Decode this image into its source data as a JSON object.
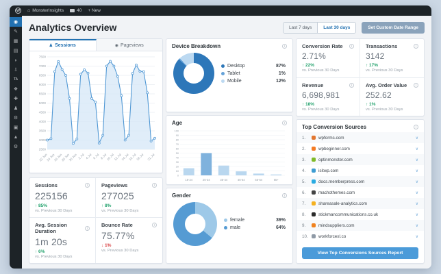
{
  "admin_bar": {
    "wp_badge": "W",
    "site_name": "MonsterInsights",
    "comments_count": "40",
    "new_label": "+ New"
  },
  "page": {
    "title": "Analytics Overview"
  },
  "date_controls": {
    "last7": "Last 7 days",
    "last30": "Last 30 days",
    "custom": "Set Custom Date Range"
  },
  "tabs": {
    "sessions": "Sessions",
    "pageviews": "Pageviews"
  },
  "sidebar": {
    "items": [
      {
        "name": "dashboard",
        "icon": "dashboard-icon",
        "glyph": "◉",
        "active": true
      },
      {
        "name": "posts",
        "icon": "pin-icon",
        "glyph": "✎",
        "active": false
      },
      {
        "name": "media",
        "icon": "media-icon",
        "glyph": "▦",
        "active": false
      },
      {
        "name": "pages",
        "icon": "pages-icon",
        "glyph": "▤",
        "active": false
      },
      {
        "name": "comments",
        "icon": "comment-bubble-icon",
        "glyph": "◗",
        "active": false
      },
      {
        "name": "downloads",
        "icon": "download-icon",
        "glyph": "⇩",
        "active": false
      },
      {
        "name": "ta-plugin",
        "icon": "ta-text-icon",
        "glyph": "TA",
        "active": false
      },
      {
        "name": "appearance",
        "icon": "brush-icon",
        "glyph": "❖",
        "active": false
      },
      {
        "name": "plugins",
        "icon": "plugin-icon",
        "glyph": "✚",
        "active": false
      },
      {
        "name": "users",
        "icon": "user-icon",
        "glyph": "♟",
        "active": false
      },
      {
        "name": "tools",
        "icon": "wrench-icon",
        "glyph": "⚙",
        "active": false
      },
      {
        "name": "page-builder",
        "icon": "box-icon",
        "glyph": "▣",
        "active": false
      },
      {
        "name": "analytics",
        "icon": "chart-icon",
        "glyph": "▲",
        "active": false
      },
      {
        "name": "settings",
        "icon": "gear-icon",
        "glyph": "⚙",
        "active": false
      }
    ]
  },
  "stats": {
    "sessions": {
      "label": "Sessions",
      "value": "225156",
      "change": "↑ 85%",
      "note": "vs. Previous 30 Days",
      "dir": "up"
    },
    "pageviews": {
      "label": "Pageviews",
      "value": "277025",
      "change": "↑ 8%",
      "note": "vs. Previous 30 Days",
      "dir": "up"
    },
    "avg_session_duration": {
      "label": "Avg. Session Duration",
      "value": "1m 20s",
      "change": "↑ 6%",
      "note": "vs. Previous 30 Days",
      "dir": "up"
    },
    "bounce_rate": {
      "label": "Bounce Rate",
      "value": "75.77%",
      "change": "↓ 1%",
      "note": "vs. Previous 30 Days",
      "dir": "down"
    },
    "conversion_rate": {
      "label": "Conversion Rate",
      "value": "2.71%",
      "change": "↑ 22%",
      "note": "vs. Previous 30 Days",
      "dir": "up"
    },
    "transactions": {
      "label": "Transactions",
      "value": "3142",
      "change": "↑ 17%",
      "note": "vs. Previous 30 Days",
      "dir": "up"
    },
    "revenue": {
      "label": "Revenue",
      "value": "6,698,981",
      "change": "↑ 18%",
      "note": "vs. Previous 30 Days",
      "dir": "up"
    },
    "avg_order_value": {
      "label": "Avg. Order Value",
      "value": "252.62",
      "change": "↑ 1%",
      "note": "vs. Previous 30 Days",
      "dir": "up"
    }
  },
  "top_sources": {
    "title": "Top Conversion Sources",
    "button_label": "View Top Conversions Sources Report",
    "items": [
      {
        "rank": "1.",
        "domain": "wpforms.com",
        "color": "#e27730"
      },
      {
        "rank": "2.",
        "domain": "wpbeginner.com",
        "color": "#f47b23"
      },
      {
        "rank": "3.",
        "domain": "optinmonster.com",
        "color": "#7fba28"
      },
      {
        "rank": "4.",
        "domain": "isitwp.com",
        "color": "#3d9cd2"
      },
      {
        "rank": "5.",
        "domain": "docs.memberpress.com",
        "color": "#29abe2"
      },
      {
        "rank": "6.",
        "domain": "machothemes.com",
        "color": "#444444"
      },
      {
        "rank": "7.",
        "domain": "shareasale-analytics.com",
        "color": "#f5b120"
      },
      {
        "rank": "8.",
        "domain": "stickmancommunications.co.uk",
        "color": "#2b2b2b"
      },
      {
        "rank": "9.",
        "domain": "mindsuppliers.com",
        "color": "#f0821e"
      },
      {
        "rank": "10.",
        "domain": "workforcexl.co",
        "color": "#8f9aa6"
      }
    ]
  },
  "chart_data": [
    {
      "type": "line",
      "name": "sessions-over-time",
      "x": [
        "22 Jun",
        "23 Jun",
        "24 Jun",
        "25 Jun",
        "26 Jun",
        "27 Jun",
        "28 Jun",
        "29 Jun",
        "30 Jun",
        "1 Jul",
        "2 Jul",
        "3 Jul",
        "4 Jul",
        "5 Jul",
        "6 Jul",
        "7 Jul",
        "8 Jul",
        "9 Jul",
        "10 Jul",
        "11 Jul",
        "12 Jul",
        "13 Jul",
        "14 Jul",
        "15 Jul",
        "16 Jul",
        "17 Jul",
        "18 Jul",
        "19 Jul",
        "20 Jul",
        "21 Jul"
      ],
      "values": [
        3000,
        3080,
        6700,
        7250,
        6820,
        6500,
        5250,
        2820,
        3060,
        6560,
        6800,
        6620,
        5250,
        5050,
        2840,
        3260,
        7000,
        7260,
        7000,
        6440,
        5400,
        3000,
        3260,
        6600,
        7060,
        6720,
        6700,
        5560,
        2950,
        3100
      ],
      "ylim": [
        2500,
        7500
      ],
      "yticks": [
        2500,
        3000,
        3500,
        4000,
        4500,
        5000,
        5500,
        6000,
        6500,
        7000,
        7500
      ],
      "xticks": [
        {
          "i": 0,
          "label": "22 Jun"
        },
        {
          "i": 2,
          "label": "24 Jun"
        },
        {
          "i": 4,
          "label": "26 Jun"
        },
        {
          "i": 6,
          "label": "28 Jun"
        },
        {
          "i": 8,
          "label": "30 Jun"
        },
        {
          "i": 10,
          "label": "2 Jul"
        },
        {
          "i": 12,
          "label": "4 Jul"
        },
        {
          "i": 14,
          "label": "6 Jul"
        },
        {
          "i": 16,
          "label": "8 Jul"
        },
        {
          "i": 18,
          "label": "10 Jul"
        },
        {
          "i": 20,
          "label": "12 Jul"
        },
        {
          "i": 22,
          "label": "14 Jul"
        },
        {
          "i": 24,
          "label": "16 Jul"
        },
        {
          "i": 26,
          "label": "18 Jul"
        },
        {
          "i": 29,
          "label": "21 Jul"
        }
      ],
      "line_color": "#4f97d4",
      "fill_color": "#d6e7f7",
      "grid": true
    },
    {
      "type": "donut",
      "title": "Device Breakdown",
      "labels": [
        "Desktop",
        "Tablet",
        "Mobile"
      ],
      "values": [
        87,
        1,
        12
      ],
      "colors": [
        "#2d77b9",
        "#64a2d9",
        "#bcd9f1"
      ],
      "legend_position": "right"
    },
    {
      "type": "bar",
      "title": "Age",
      "categories": [
        "18-24",
        "25-34",
        "35-44",
        "45-54",
        "55-64",
        "65+"
      ],
      "values": [
        16,
        50,
        22,
        9,
        4,
        2
      ],
      "ylim": [
        0,
        100
      ],
      "yticks": [
        0,
        10,
        20,
        30,
        40,
        50,
        60,
        70,
        80,
        90,
        100
      ],
      "bar_color": "#b9d7ef",
      "highlight_index": 1,
      "highlight_color": "#7fb2dd",
      "grid": true
    },
    {
      "type": "donut",
      "title": "Gender",
      "labels": [
        "female",
        "male"
      ],
      "values": [
        36,
        64
      ],
      "colors": [
        "#9ec9e8",
        "#559bd3"
      ],
      "legend_position": "right"
    }
  ],
  "colors": {
    "accent_blue": "#2271b1",
    "green": "#23a26d",
    "red": "#d63638",
    "button_blue": "#4b9bd9",
    "custom_range_bg": "#8ba3bb",
    "admin_dark": "#1d2327"
  }
}
